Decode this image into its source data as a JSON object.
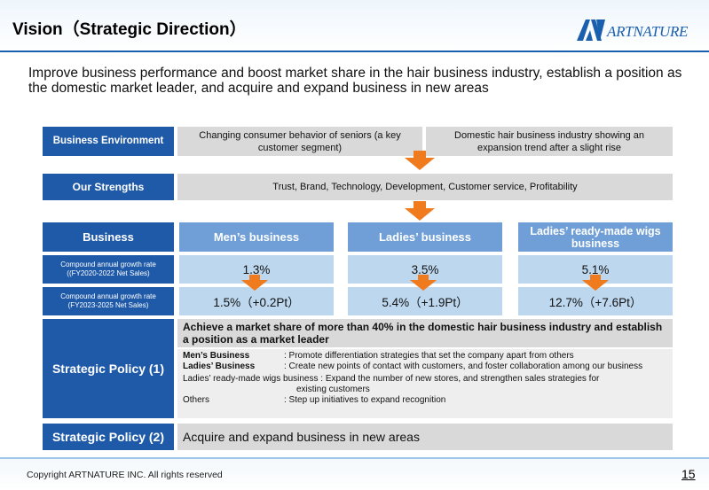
{
  "header": {
    "title": "Vision（Strategic Direction）",
    "logo_text": "ARTNATURE"
  },
  "intro": "Improve business performance and boost market share in the hair business industry, establish a position as the domestic market leader, and acquire and expand business in new areas",
  "environment": {
    "label": "Business Environment",
    "item1": "Changing consumer behavior of seniors (a key customer segment)",
    "item2": "Domestic hair business industry showing an expansion trend after a slight rise"
  },
  "strengths": {
    "label": "Our Strengths",
    "value": "Trust, Brand, Technology, Development, Customer service, Profitability"
  },
  "business": {
    "label": "Business",
    "columns": [
      "Men’s business",
      "Ladies’ business",
      "Ladies’ ready-made wigs business"
    ]
  },
  "cagr_past": {
    "label": "Compound annual growth rate ((FY2020-2022 Net Sales)",
    "values": [
      "1.3%",
      "3.5%",
      "5.1%"
    ]
  },
  "cagr_plan": {
    "label": "Compound annual growth rate (FY2023-2025 Net Sales)",
    "values": [
      "1.5%（+0.2Pt）",
      "5.4%（+1.9Pt）",
      "12.7%（+7.6Pt）"
    ]
  },
  "policy1": {
    "label": "Strategic Policy (1)",
    "headline": "Achieve a market share of more than 40% in the domestic hair business industry and establish a position as a market leader",
    "mens_key": "Men’s Business",
    "mens_val": ": Promote differentiation strategies that set the company apart from others",
    "ladies_key": "Ladies’ Business",
    "ladies_val": ": Create new points of contact with customers, and foster collaboration among our business",
    "wigs_line": "Ladies’ ready-made wigs business : Expand the number of new stores, and strengthen sales strategies for",
    "wigs_cont": "existing customers",
    "others_key": "Others",
    "others_val": ": Step up initiatives to expand recognition"
  },
  "policy2": {
    "label": "Strategic Policy (2)",
    "value": "Acquire and expand business in new areas"
  },
  "footer": {
    "copyright": "Copyright ARTNATURE INC. All rights reserved",
    "page": "15"
  },
  "colors": {
    "label_blue": "#1f5aa8",
    "column_blue": "#6f9fd6",
    "light_blue": "#bdd7ee",
    "grey": "#d9d9d9",
    "arrow_orange": "#f07a1e"
  }
}
